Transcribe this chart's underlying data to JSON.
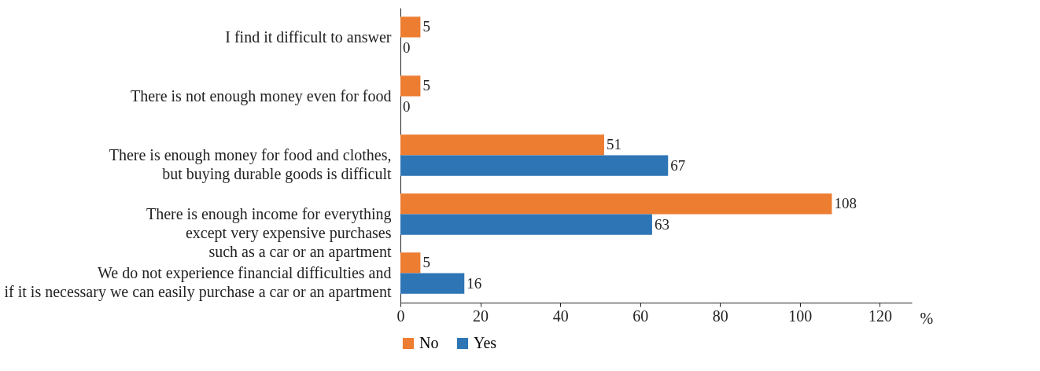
{
  "chart_data": {
    "type": "bar",
    "orientation": "horizontal",
    "categories": [
      "I find it difficult to answer",
      "There is not enough money even for food",
      "There is enough money for food and clothes,\nbut buying durable goods is difficult",
      "There is enough income for everything\nexcept very expensive purchases\nsuch as a car or an apartment",
      "We do not experience financial difficulties and\nif it is necessary we can easily purchase a car or an apartment"
    ],
    "series": [
      {
        "name": "No",
        "color": "#ed7d31",
        "values": [
          5,
          5,
          51,
          108,
          5
        ]
      },
      {
        "name": "Yes",
        "color": "#2e75b6",
        "values": [
          0,
          0,
          67,
          63,
          16
        ]
      }
    ],
    "xlabel": "%",
    "xlim": [
      0,
      128
    ],
    "xticks": [
      0,
      20,
      40,
      60,
      80,
      100,
      120
    ],
    "data_labels": true,
    "grid": false,
    "legend": "bottom"
  }
}
